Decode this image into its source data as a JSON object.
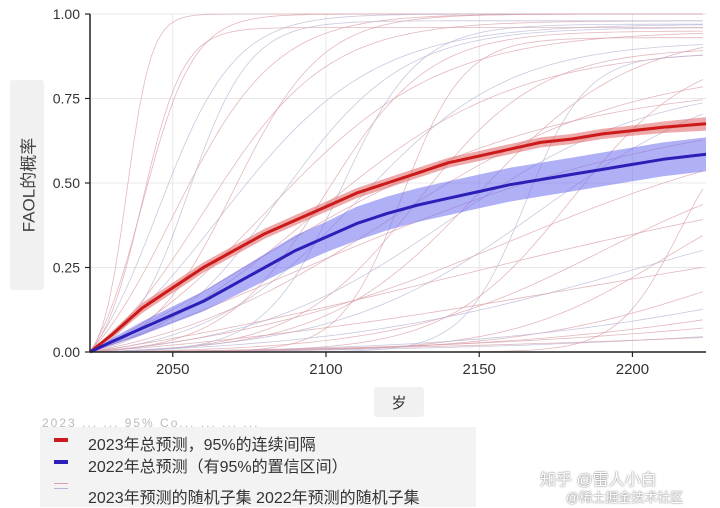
{
  "chart_data": {
    "type": "line",
    "xlabel": "岁",
    "ylabel": "FAOL的概率",
    "xlim": [
      2023,
      2224
    ],
    "ylim": [
      0,
      1
    ],
    "xticks": [
      "2050",
      "2100",
      "2150",
      "2200"
    ],
    "yticks": [
      "0.00",
      "0.25",
      "0.50",
      "0.75",
      "1.00"
    ],
    "grid": true,
    "legend_position": "bottom-left",
    "series": [
      {
        "name": "2023年总预测，95%的连续间隔",
        "color": "#cc1a1a",
        "band_color": "#e06464",
        "x": [
          2023,
          2030,
          2040,
          2050,
          2060,
          2070,
          2080,
          2090,
          2100,
          2110,
          2120,
          2130,
          2140,
          2150,
          2160,
          2170,
          2180,
          2190,
          2200,
          2210,
          2224
        ],
        "y": [
          0.0,
          0.05,
          0.13,
          0.19,
          0.25,
          0.3,
          0.35,
          0.39,
          0.43,
          0.47,
          0.5,
          0.53,
          0.56,
          0.58,
          0.6,
          0.62,
          0.63,
          0.645,
          0.655,
          0.665,
          0.675
        ],
        "lower": [
          0.0,
          0.04,
          0.115,
          0.175,
          0.235,
          0.285,
          0.335,
          0.375,
          0.415,
          0.455,
          0.485,
          0.515,
          0.545,
          0.565,
          0.585,
          0.605,
          0.615,
          0.63,
          0.64,
          0.648,
          0.655
        ],
        "upper": [
          0.0,
          0.06,
          0.145,
          0.205,
          0.265,
          0.315,
          0.365,
          0.405,
          0.445,
          0.485,
          0.515,
          0.545,
          0.575,
          0.595,
          0.615,
          0.635,
          0.645,
          0.66,
          0.67,
          0.682,
          0.695
        ]
      },
      {
        "name": "2022年总预测（有95%的置信区间）",
        "color": "#2b1fb8",
        "band_color": "#7070f0",
        "x": [
          2023,
          2030,
          2040,
          2050,
          2060,
          2070,
          2080,
          2090,
          2100,
          2110,
          2120,
          2130,
          2140,
          2150,
          2160,
          2170,
          2180,
          2190,
          2200,
          2210,
          2224
        ],
        "y": [
          0.0,
          0.03,
          0.07,
          0.11,
          0.15,
          0.2,
          0.25,
          0.3,
          0.34,
          0.38,
          0.41,
          0.435,
          0.455,
          0.475,
          0.495,
          0.51,
          0.525,
          0.54,
          0.555,
          0.57,
          0.585
        ],
        "lower": [
          0.0,
          0.02,
          0.05,
          0.085,
          0.12,
          0.165,
          0.21,
          0.255,
          0.295,
          0.33,
          0.36,
          0.385,
          0.405,
          0.425,
          0.445,
          0.46,
          0.475,
          0.49,
          0.505,
          0.52,
          0.535
        ],
        "upper": [
          0.0,
          0.04,
          0.09,
          0.135,
          0.18,
          0.235,
          0.29,
          0.345,
          0.385,
          0.43,
          0.46,
          0.485,
          0.505,
          0.525,
          0.545,
          0.56,
          0.575,
          0.59,
          0.605,
          0.62,
          0.635
        ]
      }
    ],
    "random_subsets": {
      "name": "2023年预测的随机子集 2022年预测的随机子集",
      "red_color": "#d9a0a8",
      "blue_color": "#b8b6d6",
      "curves": [
        {
          "c": "r",
          "m": 2035,
          "k": 0.25,
          "a": 1.0
        },
        {
          "c": "r",
          "m": 2040,
          "k": 0.12,
          "a": 1.0
        },
        {
          "c": "b",
          "m": 2045,
          "k": 0.08,
          "a": 1.0
        },
        {
          "c": "r",
          "m": 2050,
          "k": 0.06,
          "a": 1.0
        },
        {
          "c": "r",
          "m": 2060,
          "k": 0.05,
          "a": 0.98
        },
        {
          "c": "b",
          "m": 2065,
          "k": 0.04,
          "a": 0.97
        },
        {
          "c": "r",
          "m": 2070,
          "k": 0.07,
          "a": 1.0
        },
        {
          "c": "r",
          "m": 2080,
          "k": 0.035,
          "a": 0.95
        },
        {
          "c": "b",
          "m": 2085,
          "k": 0.05,
          "a": 0.96
        },
        {
          "c": "r",
          "m": 2095,
          "k": 0.03,
          "a": 0.9
        },
        {
          "c": "r",
          "m": 2100,
          "k": 0.06,
          "a": 0.95
        },
        {
          "c": "b",
          "m": 2110,
          "k": 0.04,
          "a": 0.92
        },
        {
          "c": "r",
          "m": 2120,
          "k": 0.025,
          "a": 0.85
        },
        {
          "c": "r",
          "m": 2130,
          "k": 0.05,
          "a": 0.9
        },
        {
          "c": "b",
          "m": 2140,
          "k": 0.03,
          "a": 0.8
        },
        {
          "c": "r",
          "m": 2150,
          "k": 0.04,
          "a": 0.95
        },
        {
          "c": "r",
          "m": 2160,
          "k": 0.02,
          "a": 0.7
        },
        {
          "c": "b",
          "m": 2170,
          "k": 0.03,
          "a": 0.85
        },
        {
          "c": "r",
          "m": 2180,
          "k": 0.05,
          "a": 0.9
        },
        {
          "c": "r",
          "m": 2190,
          "k": 0.03,
          "a": 0.6
        },
        {
          "c": "b",
          "m": 2200,
          "k": 0.02,
          "a": 0.5
        },
        {
          "c": "r",
          "m": 2210,
          "k": 0.04,
          "a": 0.55
        },
        {
          "c": "r",
          "m": 2230,
          "k": 0.03,
          "a": 0.4
        },
        {
          "c": "b",
          "m": 2250,
          "k": 0.02,
          "a": 0.35
        },
        {
          "c": "r",
          "m": 2260,
          "k": 0.02,
          "a": 0.3
        },
        {
          "c": "r",
          "m": 2280,
          "k": 0.015,
          "a": 0.25
        },
        {
          "c": "b",
          "m": 2300,
          "k": 0.015,
          "a": 0.2
        },
        {
          "c": "r",
          "m": 2320,
          "k": 0.01,
          "a": 0.18
        },
        {
          "c": "r",
          "m": 2040,
          "k": 0.15,
          "a": 0.96
        },
        {
          "c": "b",
          "m": 2055,
          "k": 0.1,
          "a": 0.98
        },
        {
          "c": "r",
          "m": 2075,
          "k": 0.02,
          "a": 0.8
        },
        {
          "c": "r",
          "m": 2090,
          "k": 0.015,
          "a": 0.75
        },
        {
          "c": "b",
          "m": 2105,
          "k": 0.08,
          "a": 0.97
        },
        {
          "c": "r",
          "m": 2125,
          "k": 0.1,
          "a": 0.93
        },
        {
          "c": "r",
          "m": 2145,
          "k": 0.012,
          "a": 0.6
        },
        {
          "c": "b",
          "m": 2165,
          "k": 0.1,
          "a": 0.88
        },
        {
          "c": "r",
          "m": 2185,
          "k": 0.012,
          "a": 0.45
        },
        {
          "c": "r",
          "m": 2215,
          "k": 0.1,
          "a": 0.7
        }
      ]
    }
  },
  "legend": {
    "ghost_text": "2023 ... ... 95% Co... ... ... ...",
    "items": [
      {
        "label": "2023年总预测，95%的连续间隔",
        "color": "#cc1a1a",
        "thick": true
      },
      {
        "label": "2022年总预测（有95%的置信区间）",
        "color": "#2b1fb8",
        "thick": true
      },
      {
        "label": "",
        "color": "#d9a0a8",
        "thick": false
      },
      {
        "label": "2023年预测的随机子集 2022年预测的随机子集",
        "color": "#b8b6d6",
        "thick": false
      }
    ]
  },
  "watermark": {
    "main": "知乎 @雷人小白",
    "sub": "@稀土掘金技术社区"
  }
}
